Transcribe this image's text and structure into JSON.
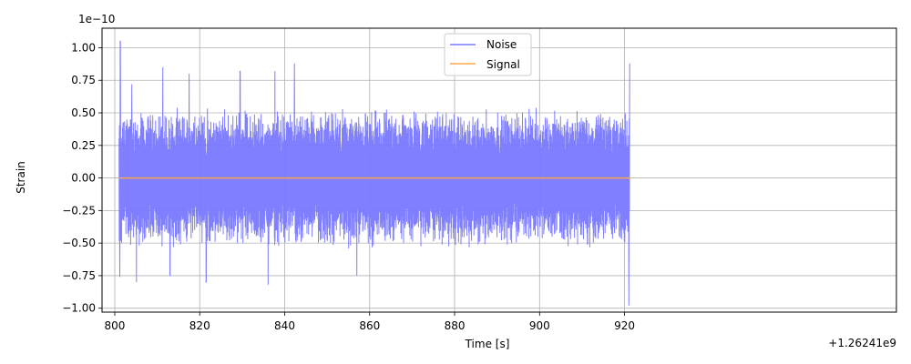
{
  "chart_data": {
    "type": "line",
    "xlabel": "Time [s]",
    "ylabel": "Strain",
    "x_offset_label": "+1.26241e9",
    "y_scale_label": "1e−10",
    "xlim": [
      797,
      984
    ],
    "ylim": [
      -1.03,
      1.15
    ],
    "xticks": [
      800,
      820,
      840,
      860,
      880,
      900,
      920
    ],
    "yticks": [
      -1.0,
      -0.75,
      -0.5,
      -0.25,
      0.0,
      0.25,
      0.5,
      0.75,
      1.0
    ],
    "ytick_labels": [
      "−1.00",
      "−0.75",
      "−0.50",
      "−0.25",
      "0.00",
      "0.25",
      "0.50",
      "0.75",
      "1.00"
    ],
    "grid": true,
    "legend_position": "top-center",
    "series": [
      {
        "name": "Noise",
        "color": "#7878ff",
        "x_range": [
          801,
          921.2
        ],
        "typical_amplitude": 0.5,
        "peaks": [
          {
            "x": 801.3,
            "y": 1.05
          },
          {
            "x": 801.2,
            "y": -0.76
          },
          {
            "x": 804.0,
            "y": 0.72
          },
          {
            "x": 805.1,
            "y": -0.8
          },
          {
            "x": 811.3,
            "y": 0.85
          },
          {
            "x": 813.0,
            "y": -0.75
          },
          {
            "x": 817.5,
            "y": 0.8
          },
          {
            "x": 821.5,
            "y": -0.8
          },
          {
            "x": 829.5,
            "y": 0.82
          },
          {
            "x": 836.1,
            "y": -0.82
          },
          {
            "x": 837.7,
            "y": 0.82
          },
          {
            "x": 842.3,
            "y": 0.88
          },
          {
            "x": 857.0,
            "y": -0.75
          },
          {
            "x": 921.0,
            "y": -0.98
          },
          {
            "x": 921.2,
            "y": 0.88
          }
        ]
      },
      {
        "name": "Signal",
        "color": "#ffa64d",
        "x_range": [
          801,
          921.2
        ],
        "values": "0.00 (flat)"
      }
    ]
  }
}
